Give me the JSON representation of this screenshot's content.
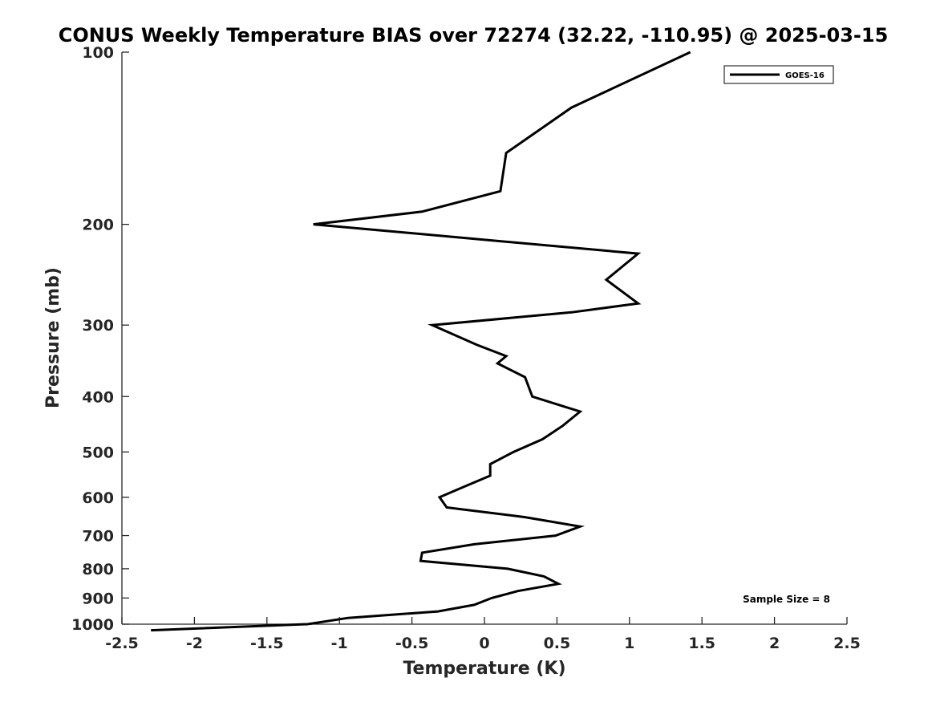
{
  "chart_data": {
    "type": "line",
    "title": "CONUS Weekly Temperature BIAS over 72274 (32.22, -110.95) @ 2025-03-15",
    "xlabel": "Temperature (K)",
    "ylabel": "Pressure (mb)",
    "xlim": [
      -2.5,
      2.5
    ],
    "ylim": [
      100,
      1000
    ],
    "y_scale": "log",
    "y_reversed": true,
    "x_ticks": [
      -2.5,
      -2,
      -1.5,
      -1,
      -0.5,
      0,
      0.5,
      1,
      1.5,
      2,
      2.5
    ],
    "x_tick_labels": [
      "-2.5",
      "-2",
      "-1.5",
      "-1",
      "-0.5",
      "0",
      "0.5",
      "1",
      "1.5",
      "2",
      "2.5"
    ],
    "y_ticks": [
      100,
      200,
      300,
      400,
      500,
      600,
      700,
      800,
      900,
      1000
    ],
    "y_tick_labels": [
      "100",
      "200",
      "300",
      "400",
      "500",
      "600",
      "700",
      "800",
      "900",
      "1000"
    ],
    "grid": false,
    "legend_position": "top-right",
    "series": [
      {
        "name": "GOES-16",
        "color": "#000000",
        "points": [
          {
            "x": 1.42,
            "y": 100
          },
          {
            "x": 0.6,
            "y": 125
          },
          {
            "x": 0.15,
            "y": 150
          },
          {
            "x": 0.11,
            "y": 175
          },
          {
            "x": -0.43,
            "y": 190
          },
          {
            "x": -1.18,
            "y": 200
          },
          {
            "x": 1.06,
            "y": 225
          },
          {
            "x": 0.84,
            "y": 250
          },
          {
            "x": 1.06,
            "y": 275
          },
          {
            "x": 0.6,
            "y": 285
          },
          {
            "x": -0.36,
            "y": 300
          },
          {
            "x": -0.05,
            "y": 325
          },
          {
            "x": 0.15,
            "y": 340
          },
          {
            "x": 0.09,
            "y": 350
          },
          {
            "x": 0.28,
            "y": 370
          },
          {
            "x": 0.33,
            "y": 400
          },
          {
            "x": 0.66,
            "y": 425
          },
          {
            "x": 0.54,
            "y": 450
          },
          {
            "x": 0.4,
            "y": 475
          },
          {
            "x": 0.2,
            "y": 500
          },
          {
            "x": 0.04,
            "y": 525
          },
          {
            "x": 0.04,
            "y": 550
          },
          {
            "x": -0.14,
            "y": 575
          },
          {
            "x": -0.31,
            "y": 600
          },
          {
            "x": -0.26,
            "y": 625
          },
          {
            "x": 0.28,
            "y": 650
          },
          {
            "x": 0.66,
            "y": 675
          },
          {
            "x": 0.49,
            "y": 700
          },
          {
            "x": -0.07,
            "y": 725
          },
          {
            "x": -0.43,
            "y": 750
          },
          {
            "x": -0.44,
            "y": 775
          },
          {
            "x": 0.16,
            "y": 800
          },
          {
            "x": 0.41,
            "y": 825
          },
          {
            "x": 0.51,
            "y": 850
          },
          {
            "x": 0.23,
            "y": 875
          },
          {
            "x": 0.05,
            "y": 900
          },
          {
            "x": -0.07,
            "y": 925
          },
          {
            "x": -0.32,
            "y": 950
          },
          {
            "x": -0.94,
            "y": 975
          },
          {
            "x": -1.22,
            "y": 1000
          },
          {
            "x": -2.3,
            "y": 1025
          }
        ]
      }
    ],
    "annotations": [
      {
        "text": "Sample Size = 8",
        "position": "bottom-right"
      }
    ]
  }
}
